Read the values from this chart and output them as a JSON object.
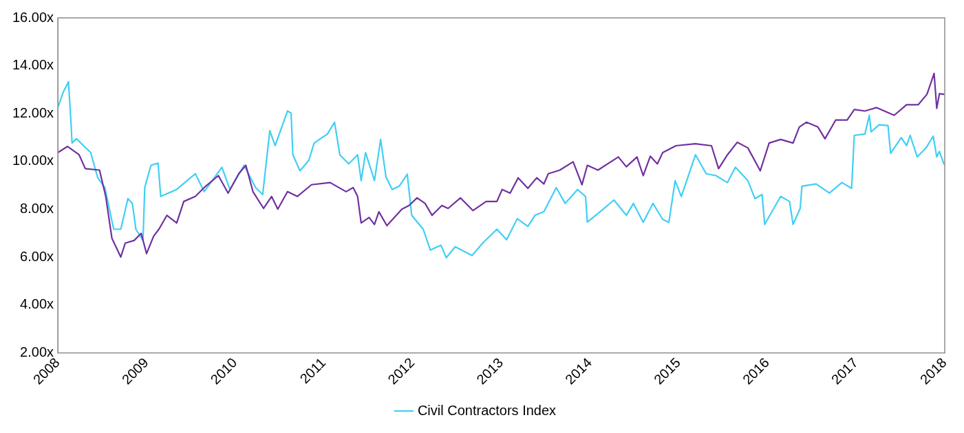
{
  "chart_data": {
    "type": "line",
    "xlim": [
      2008,
      2018
    ],
    "xticks": [
      2008,
      2009,
      2010,
      2011,
      2012,
      2013,
      2014,
      2015,
      2016,
      2017,
      2018
    ],
    "ylim": [
      2,
      16
    ],
    "yticks": [
      {
        "value": 2,
        "label": "2.00x"
      },
      {
        "value": 4,
        "label": "4.00x"
      },
      {
        "value": 6,
        "label": "6.00x"
      },
      {
        "value": 8,
        "label": "8.00x"
      },
      {
        "value": 10,
        "label": "10.00x"
      },
      {
        "value": 12,
        "label": "12.00x"
      },
      {
        "value": 14,
        "label": "14.00x"
      },
      {
        "value": 16,
        "label": "16.00x"
      }
    ],
    "grid": false,
    "legend": "bottom",
    "marker": "none",
    "line_style": "solid",
    "series": [
      {
        "color": "#7030a0",
        "x": [
          2008.0,
          2008.11,
          2008.24,
          2008.31,
          2008.47,
          2008.54,
          2008.61,
          2008.71,
          2008.76,
          2008.86,
          2008.94,
          2009.0,
          2009.08,
          2009.14,
          2009.23,
          2009.34,
          2009.42,
          2009.55,
          2009.65,
          2009.81,
          2009.92,
          2010.04,
          2010.12,
          2010.2,
          2010.32,
          2010.41,
          2010.48,
          2010.59,
          2010.7,
          2010.86,
          2011.07,
          2011.25,
          2011.33,
          2011.38,
          2011.42,
          2011.51,
          2011.57,
          2011.62,
          2011.71,
          2011.88,
          2011.96,
          2012.05,
          2012.14,
          2012.22,
          2012.33,
          2012.4,
          2012.54,
          2012.68,
          2012.83,
          2012.95,
          2013.01,
          2013.1,
          2013.19,
          2013.3,
          2013.4,
          2013.48,
          2013.53,
          2013.66,
          2013.81,
          2013.91,
          2013.97,
          2014.09,
          2014.32,
          2014.41,
          2014.53,
          2014.6,
          2014.68,
          2014.76,
          2014.82,
          2014.97,
          2015.19,
          2015.37,
          2015.45,
          2015.55,
          2015.66,
          2015.78,
          2015.92,
          2016.02,
          2016.15,
          2016.29,
          2016.36,
          2016.44,
          2016.57,
          2016.65,
          2016.77,
          2016.9,
          2016.98,
          2017.1,
          2017.23,
          2017.43,
          2017.57,
          2017.7,
          2017.8,
          2017.88,
          2017.91,
          2017.94,
          2017.99
        ],
        "values": [
          10.37,
          10.63,
          10.28,
          9.7,
          9.64,
          8.54,
          6.79,
          6.01,
          6.59,
          6.7,
          7.0,
          6.15,
          6.88,
          7.17,
          7.75,
          7.43,
          8.33,
          8.54,
          8.91,
          9.41,
          8.68,
          9.49,
          9.84,
          8.74,
          8.04,
          8.54,
          8.01,
          8.74,
          8.54,
          9.03,
          9.12,
          8.74,
          8.91,
          8.54,
          7.43,
          7.66,
          7.37,
          7.9,
          7.32,
          8.01,
          8.16,
          8.48,
          8.25,
          7.75,
          8.16,
          8.04,
          8.48,
          7.95,
          8.33,
          8.33,
          8.83,
          8.68,
          9.32,
          8.88,
          9.32,
          9.06,
          9.49,
          9.64,
          9.99,
          9.03,
          9.84,
          9.64,
          10.19,
          9.78,
          10.19,
          9.41,
          10.22,
          9.9,
          10.37,
          10.66,
          10.74,
          10.66,
          9.7,
          10.28,
          10.8,
          10.57,
          9.61,
          10.77,
          10.92,
          10.77,
          11.44,
          11.64,
          11.44,
          10.95,
          11.73,
          11.73,
          12.17,
          12.11,
          12.25,
          11.93,
          12.37,
          12.37,
          12.81,
          13.68,
          12.22,
          12.83,
          12.81
        ]
      },
      {
        "name": "Civil Contractors Index",
        "color": "#3fcff5",
        "x": [
          2008.0,
          2008.06,
          2008.12,
          2008.15,
          2008.16,
          2008.21,
          2008.37,
          2008.45,
          2008.53,
          2008.63,
          2008.71,
          2008.79,
          2008.84,
          2008.88,
          2008.96,
          2008.98,
          2009.05,
          2009.13,
          2009.16,
          2009.34,
          2009.55,
          2009.65,
          2009.85,
          2009.94,
          2010.1,
          2010.23,
          2010.31,
          2010.39,
          2010.45,
          2010.59,
          2010.63,
          2010.65,
          2010.73,
          2010.83,
          2010.89,
          2011.04,
          2011.12,
          2011.18,
          2011.28,
          2011.38,
          2011.42,
          2011.47,
          2011.57,
          2011.64,
          2011.7,
          2011.77,
          2011.85,
          2011.94,
          2011.99,
          2012.12,
          2012.2,
          2012.32,
          2012.38,
          2012.48,
          2012.67,
          2012.79,
          2012.95,
          2013.06,
          2013.18,
          2013.3,
          2013.38,
          2013.48,
          2013.62,
          2013.72,
          2013.86,
          2013.95,
          2013.97,
          2014.13,
          2014.27,
          2014.41,
          2014.49,
          2014.6,
          2014.71,
          2014.82,
          2014.89,
          2014.96,
          2015.03,
          2015.19,
          2015.31,
          2015.42,
          2015.55,
          2015.64,
          2015.78,
          2015.86,
          2015.94,
          2015.97,
          2016.15,
          2016.25,
          2016.29,
          2016.37,
          2016.39,
          2016.55,
          2016.7,
          2016.84,
          2016.95,
          2016.98,
          2017.1,
          2017.15,
          2017.17,
          2017.26,
          2017.36,
          2017.39,
          2017.51,
          2017.57,
          2017.61,
          2017.69,
          2017.79,
          2017.87,
          2017.91,
          2017.94,
          2017.99
        ],
        "values": [
          12.25,
          12.89,
          13.33,
          11.53,
          10.77,
          10.95,
          10.37,
          9.32,
          8.91,
          7.17,
          7.17,
          8.45,
          8.25,
          7.17,
          6.7,
          8.91,
          9.84,
          9.93,
          8.54,
          8.83,
          9.49,
          8.74,
          9.76,
          8.83,
          9.84,
          8.91,
          8.62,
          11.29,
          10.66,
          12.11,
          12.02,
          10.28,
          9.61,
          10.05,
          10.77,
          11.15,
          11.64,
          10.28,
          9.9,
          10.28,
          9.2,
          10.37,
          9.2,
          10.92,
          9.35,
          8.83,
          8.97,
          9.47,
          7.75,
          7.17,
          6.3,
          6.5,
          5.98,
          6.44,
          6.07,
          6.59,
          7.17,
          6.73,
          7.61,
          7.29,
          7.75,
          7.9,
          8.91,
          8.25,
          8.83,
          8.54,
          7.47,
          7.95,
          8.39,
          7.75,
          8.25,
          7.46,
          8.25,
          7.58,
          7.46,
          9.2,
          8.54,
          10.28,
          9.49,
          9.41,
          9.12,
          9.76,
          9.2,
          8.45,
          8.62,
          7.37,
          8.54,
          8.33,
          7.37,
          8.04,
          8.97,
          9.06,
          8.68,
          9.12,
          8.88,
          11.09,
          11.15,
          11.93,
          11.24,
          11.53,
          11.5,
          10.34,
          11.0,
          10.66,
          11.09,
          10.19,
          10.57,
          11.06,
          10.19,
          10.42,
          9.9
        ]
      }
    ]
  }
}
